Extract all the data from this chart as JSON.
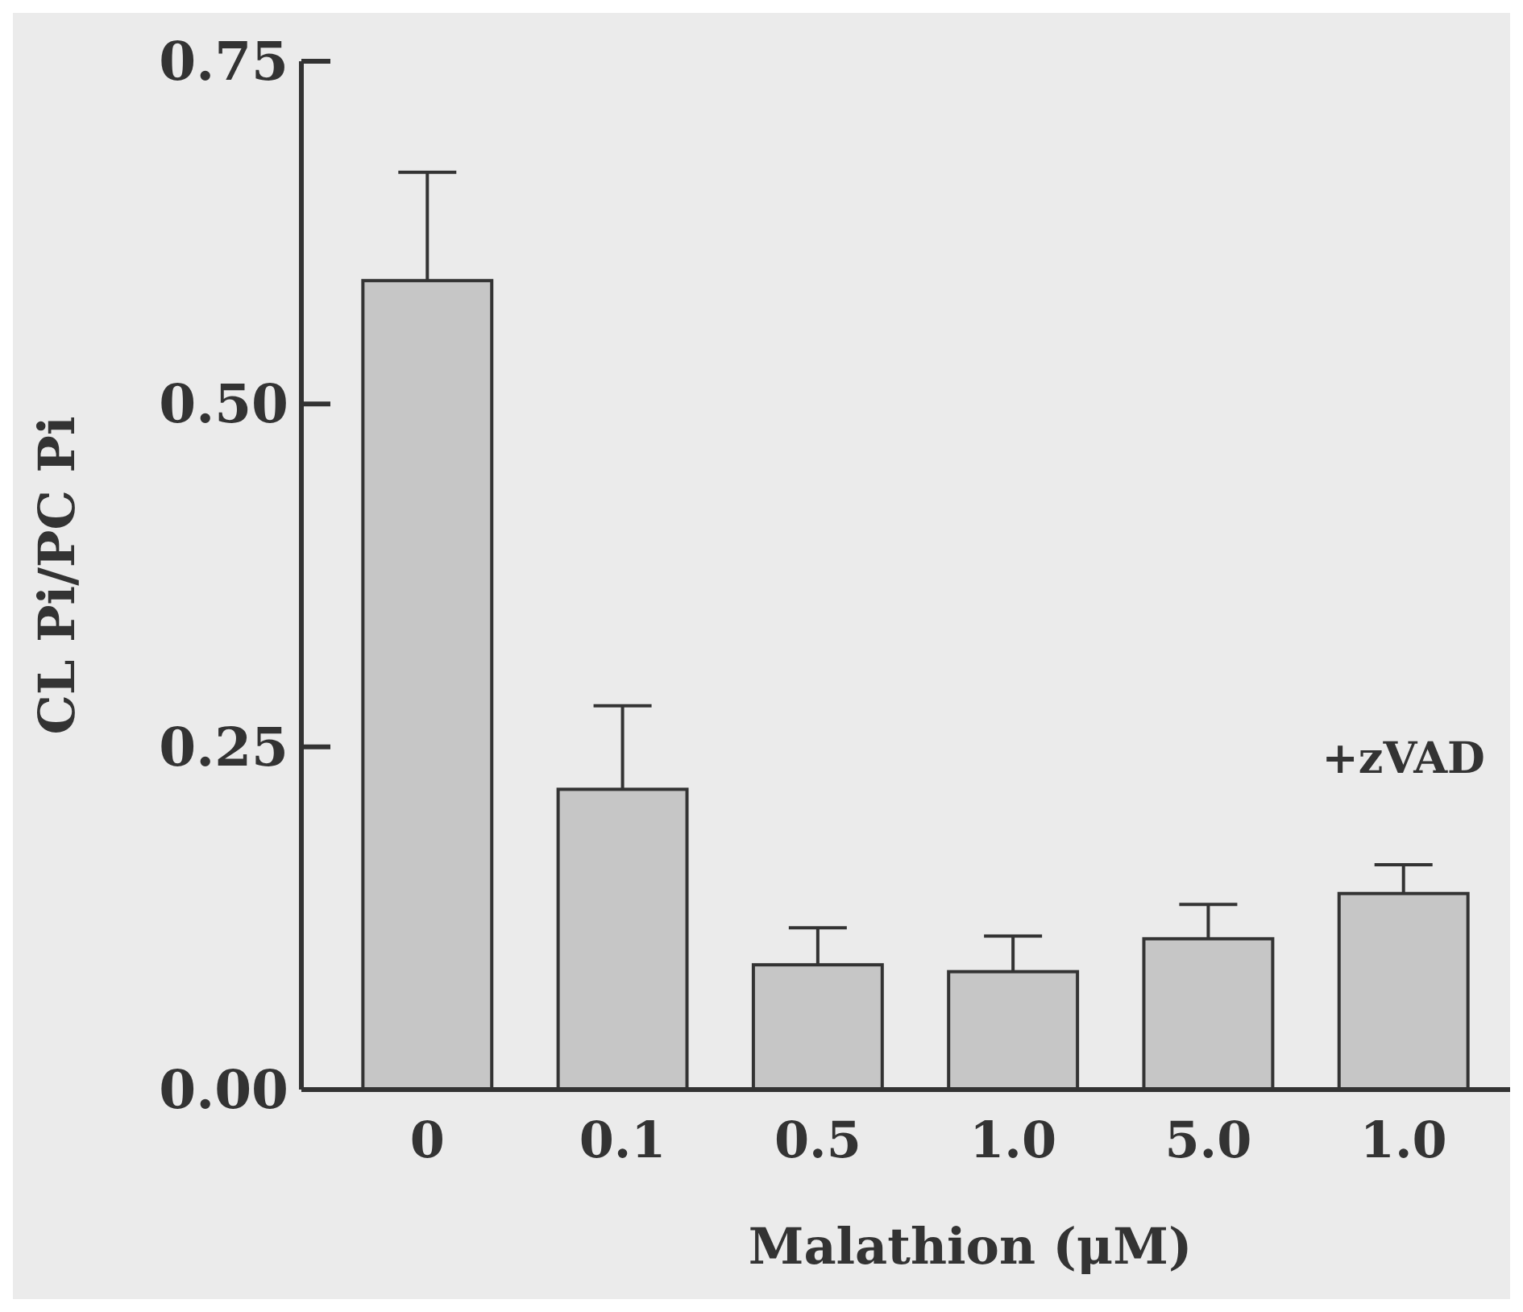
{
  "chart_data": {
    "type": "bar",
    "xlabel": "Malathion (μM)",
    "ylabel": "CL Pi/PC Pi",
    "categories": [
      "0",
      "0.1",
      "0.5",
      "1.0",
      "5.0",
      "1.0"
    ],
    "values": [
      0.59,
      0.219,
      0.091,
      0.086,
      0.11,
      0.143
    ],
    "errors": [
      [
        0.59,
        0.669
      ],
      [
        0.219,
        0.28
      ],
      [
        0.091,
        0.118
      ],
      [
        0.086,
        0.112
      ],
      [
        0.11,
        0.135
      ],
      [
        0.143,
        0.164
      ]
    ],
    "color": "#c6c6c6",
    "ylim": [
      0,
      0.75
    ],
    "yticks": [
      {
        "value": 0,
        "label": "0.00"
      },
      {
        "value": 0.25,
        "label": "0.25"
      },
      {
        "value": 0.5,
        "label": "0.50"
      },
      {
        "value": 0.75,
        "label": "0.75"
      }
    ],
    "annotations": [
      "+zVAD"
    ],
    "grid": false
  }
}
